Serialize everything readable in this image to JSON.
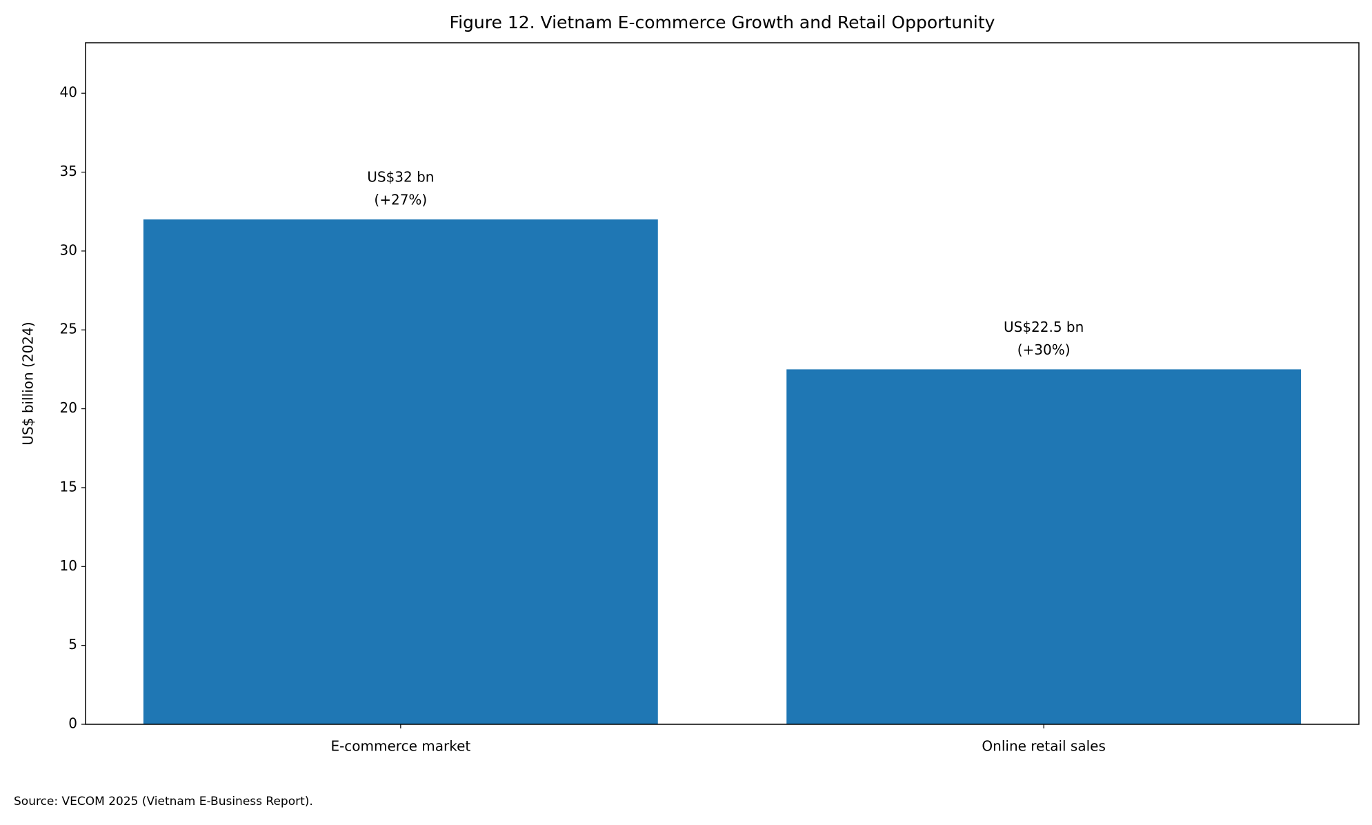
{
  "chart_data": {
    "type": "bar",
    "title": "Figure 12. Vietnam E-commerce Growth and Retail Opportunity",
    "y_label": "US$ billion (2024)",
    "categories": [
      "E-commerce market",
      "Online retail sales"
    ],
    "values": [
      32,
      22.5
    ],
    "value_labels": [
      "US$32 bn",
      "US$22.5 bn"
    ],
    "growth_labels": [
      "(+27%)",
      "(+30%)"
    ],
    "color": "#1f77b4",
    "ylim": [
      0,
      43.2
    ],
    "yticks": [
      0,
      5,
      10,
      15,
      20,
      25,
      30,
      35,
      40
    ],
    "grid": false,
    "source": "Source: VECOM 2025 (Vietnam E-Business Report)."
  }
}
